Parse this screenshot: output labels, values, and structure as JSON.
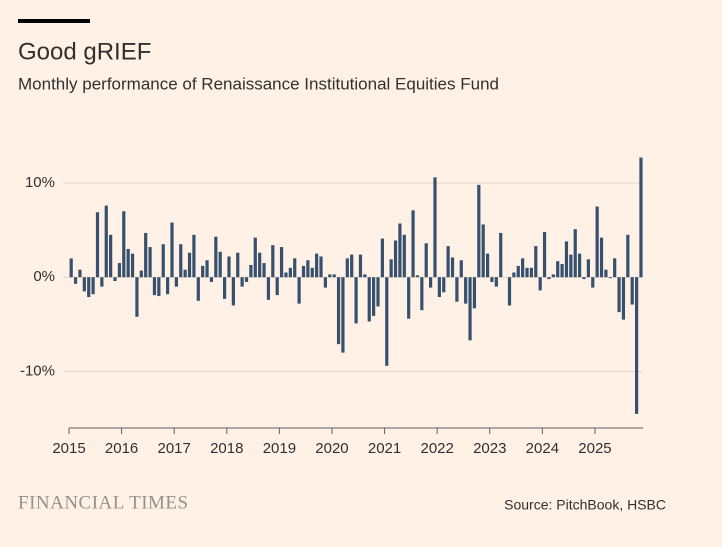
{
  "chart_data": {
    "type": "bar",
    "title": "Good gRIEF",
    "subtitle": "Monthly performance of Renaissance Institutional Equities Fund",
    "brand": "FINANCIAL TIMES",
    "source": "Source: PitchBook, HSBC",
    "categories": [
      "2015",
      null,
      null,
      null,
      null,
      null,
      null,
      null,
      null,
      null,
      null,
      null,
      "2016",
      null,
      null,
      null,
      null,
      null,
      null,
      null,
      null,
      null,
      null,
      null,
      "2017",
      null,
      null,
      null,
      null,
      null,
      null,
      null,
      null,
      null,
      null,
      null,
      "2018",
      null,
      null,
      null,
      null,
      null,
      null,
      null,
      null,
      null,
      null,
      null,
      "2019",
      null,
      null,
      null,
      null,
      null,
      null,
      null,
      null,
      null,
      null,
      null,
      "2020",
      null,
      null,
      null,
      null,
      null,
      null,
      null,
      null,
      null,
      null,
      null,
      "2021",
      null,
      null,
      null,
      null,
      null,
      null,
      null,
      null,
      null,
      null,
      null,
      "2022",
      null,
      null,
      null,
      null,
      null,
      null,
      null,
      null,
      null,
      null,
      null,
      "2023",
      null,
      null,
      null,
      null,
      null,
      null,
      null,
      null,
      null,
      null,
      null,
      "2024",
      null,
      null,
      null,
      null,
      null,
      null,
      null,
      null,
      null,
      null,
      null,
      "2025",
      null,
      null,
      null,
      null,
      null,
      null,
      null,
      null,
      null,
      null
    ],
    "values": [
      2.0,
      -0.7,
      0.8,
      -1.5,
      -2.1,
      -1.8,
      6.9,
      -1.0,
      7.6,
      4.5,
      -0.4,
      1.5,
      7.0,
      3.0,
      2.5,
      -4.2,
      0.7,
      4.7,
      3.2,
      -1.9,
      -2.0,
      3.5,
      -1.8,
      5.8,
      -1.0,
      3.5,
      0.8,
      2.6,
      4.5,
      -2.5,
      1.2,
      1.8,
      -0.5,
      4.3,
      2.7,
      -2.3,
      2.2,
      -3.0,
      2.6,
      -1.0,
      -0.5,
      1.3,
      4.2,
      2.6,
      1.5,
      -2.4,
      3.4,
      -1.9,
      3.2,
      0.5,
      1.0,
      2.0,
      -2.8,
      1.2,
      1.8,
      1.0,
      2.5,
      2.2,
      -1.1,
      0.3,
      0.3,
      -7.1,
      -8.0,
      2.0,
      2.4,
      -4.9,
      2.4,
      0.3,
      -4.7,
      -4.1,
      -3.1,
      4.1,
      -9.4,
      1.9,
      3.9,
      5.7,
      4.5,
      -4.4,
      7.1,
      0.2,
      -3.5,
      3.6,
      -1.1,
      10.6,
      -2.1,
      -1.6,
      3.3,
      2.1,
      -2.6,
      1.8,
      -2.8,
      -6.7,
      -3.3,
      9.8,
      5.6,
      2.5,
      -0.5,
      -1.0,
      4.7,
      0.0,
      -3.0,
      0.5,
      1.2,
      2.0,
      1.0,
      1.0,
      3.3,
      -1.4,
      4.8,
      -0.2,
      0.3,
      1.7,
      1.4,
      3.8,
      2.4,
      5.1,
      2.5,
      -0.2,
      1.9,
      -1.1,
      7.5,
      4.2,
      0.8,
      -0.1,
      2.0,
      -3.7,
      -4.5,
      4.5,
      -2.9,
      -14.5,
      12.7
    ],
    "color": "#36506e",
    "ylim": [
      -16,
      13.5
    ],
    "yticks": [
      {
        "value": -10,
        "label": "-10%"
      },
      {
        "value": 0,
        "label": "0%"
      },
      {
        "value": 10,
        "label": "10%"
      }
    ],
    "grid": true
  }
}
